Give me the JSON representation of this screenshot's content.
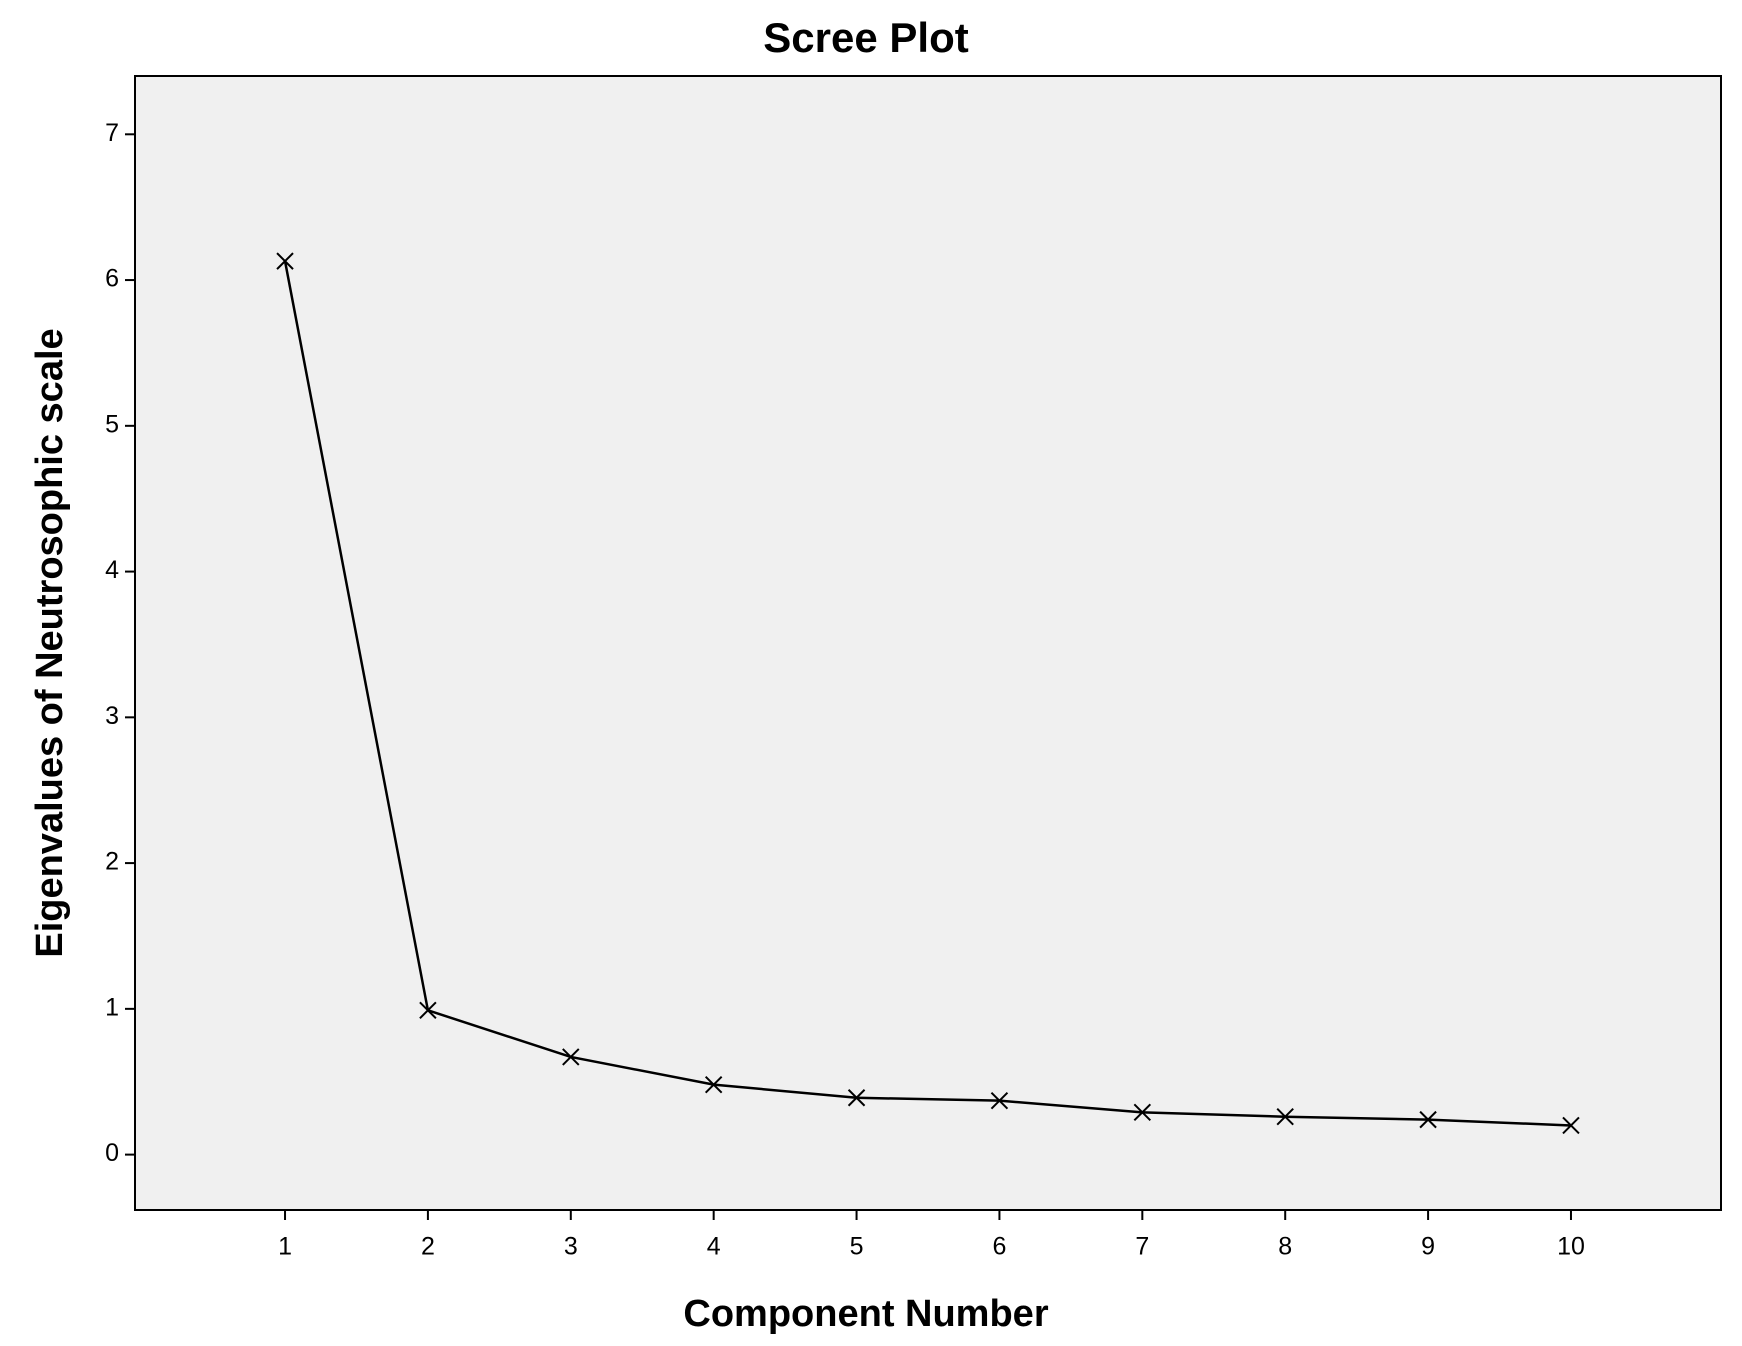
{
  "chart_data": {
    "type": "line",
    "title": "Scree Plot",
    "x_label": "Component Number",
    "y_label": "Eigenvalues of Neutrosophic scale",
    "x": [
      1,
      2,
      3,
      4,
      5,
      6,
      7,
      8,
      9,
      10
    ],
    "values": [
      6.13,
      0.99,
      0.67,
      0.48,
      0.39,
      0.37,
      0.29,
      0.26,
      0.24,
      0.2
    ],
    "color": "#000000",
    "marker": "x",
    "background": "#f0f0f0",
    "xlim": [
      -0.05,
      11.05
    ],
    "xticks": [
      1,
      2,
      3,
      4,
      5,
      6,
      7,
      8,
      9,
      10
    ],
    "ylim": [
      -0.38,
      7.4
    ],
    "yticks": [
      0,
      1,
      2,
      3,
      4,
      5,
      6,
      7
    ],
    "grid": false
  }
}
